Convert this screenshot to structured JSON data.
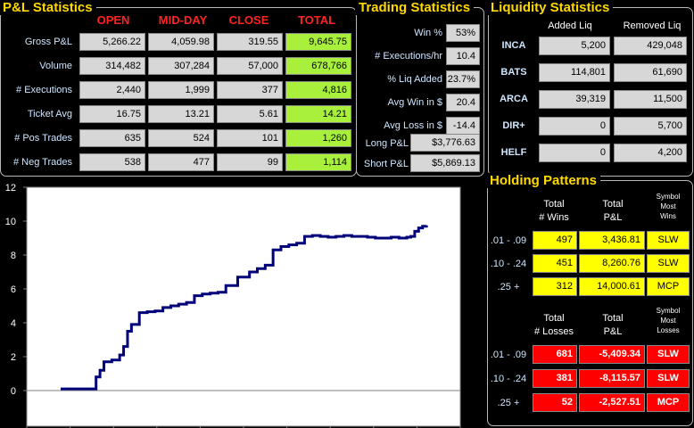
{
  "pl": {
    "title": "P&L Statistics",
    "columns": [
      "OPEN",
      "MID-DAY",
      "CLOSE",
      "TOTAL"
    ],
    "rows": [
      {
        "label": "Gross P&L",
        "values": [
          "5,266.22",
          "4,059.98",
          "319.55",
          "9,645.75"
        ]
      },
      {
        "label": "Volume",
        "values": [
          "314,482",
          "307,284",
          "57,000",
          "678,766"
        ]
      },
      {
        "label": "# Executions",
        "values": [
          "2,440",
          "1,999",
          "377",
          "4,816"
        ]
      },
      {
        "label": "Ticket Avg",
        "values": [
          "16.75",
          "13.21",
          "5.61",
          "14.21"
        ]
      },
      {
        "label": "# Pos Trades",
        "values": [
          "635",
          "524",
          "101",
          "1,260"
        ]
      },
      {
        "label": "# Neg Trades",
        "values": [
          "538",
          "477",
          "99",
          "1,114"
        ]
      }
    ]
  },
  "trading": {
    "title": "Trading Statistics",
    "rows": [
      {
        "label": "Win %",
        "value": "53%"
      },
      {
        "label": "# Executions/hr",
        "value": "10.4"
      },
      {
        "label": "% Liq Added",
        "value": "23.7%"
      },
      {
        "label": "Avg Win in $",
        "value": "20.4"
      },
      {
        "label": "Avg Loss in $",
        "value": "-14.4"
      }
    ],
    "long_label": "Long P&L",
    "long_value": "$3,776.63",
    "short_label": "Short P&L",
    "short_value": "$5,869.13"
  },
  "liquidity": {
    "title": "Liquidity Statistics",
    "col_added": "Added Liq",
    "col_removed": "Removed Liq",
    "rows": [
      {
        "label": "INCA",
        "added": "5,200",
        "removed": "429,048"
      },
      {
        "label": "BATS",
        "added": "114,801",
        "removed": "61,690"
      },
      {
        "label": "ARCA",
        "added": "39,319",
        "removed": "11,500"
      },
      {
        "label": "DIR+",
        "added": "0",
        "removed": "5,700"
      },
      {
        "label": "HELF",
        "added": "0",
        "removed": "4,200"
      }
    ]
  },
  "holding": {
    "title": "Holding Patterns",
    "wins_hdr1": "Total",
    "wins_hdr2": "# Wins",
    "pl_hdr1": "Total",
    "pl_hdr2": "P&L",
    "sym_hdr": [
      "Symbol",
      "Most",
      "Wins"
    ],
    "wins": [
      {
        "range": ".01 - .09",
        "count": "497",
        "pl": "3,436.81",
        "sym": "SLW"
      },
      {
        "range": ".10 - .24",
        "count": "451",
        "pl": "8,260.76",
        "sym": "SLW"
      },
      {
        "range": ".25 +",
        "count": "312",
        "pl": "14,000.61",
        "sym": "MCP"
      }
    ],
    "loss_hdr1": "Total",
    "loss_hdr2": "# Losses",
    "lpl_hdr1": "Total",
    "lpl_hdr2": "P&L",
    "lsym_hdr": [
      "Symbol",
      "Most",
      "Losses"
    ],
    "losses": [
      {
        "range": ".01 - .09",
        "count": "681",
        "pl": "-5,409.34",
        "sym": "SLW"
      },
      {
        "range": ".10 - .24",
        "count": "381",
        "pl": "-8,115.57",
        "sym": "SLW"
      },
      {
        "range": ".25 +",
        "count": "52",
        "pl": "-2,527.51",
        "sym": "MCP"
      }
    ]
  },
  "chart_data": {
    "type": "line",
    "title": "",
    "xlabel": "",
    "ylabel": "",
    "ylim": [
      0,
      12
    ],
    "yticks": [
      "0",
      "2",
      "4",
      "6",
      "8",
      "10",
      "12"
    ],
    "grid": false,
    "series_color": "#00007a",
    "x": [
      0,
      0.06,
      0.07,
      0.08,
      0.09,
      0.1,
      0.11,
      0.13,
      0.14,
      0.15,
      0.16,
      0.17,
      0.18,
      0.2,
      0.22,
      0.24,
      0.26,
      0.28,
      0.3,
      0.32,
      0.34,
      0.36,
      0.38,
      0.4,
      0.42,
      0.45,
      0.48,
      0.5,
      0.52,
      0.54,
      0.56,
      0.58,
      0.6,
      0.62,
      0.64,
      0.66,
      0.68,
      0.7,
      0.72,
      0.74,
      0.76,
      0.78,
      0.8,
      0.82,
      0.84,
      0.86,
      0.88,
      0.89,
      0.9,
      0.91,
      0.92,
      0.93
    ],
    "y": [
      0.1,
      0.1,
      0.1,
      0.1,
      0.8,
      1.2,
      1.7,
      1.8,
      1.8,
      2.1,
      2.6,
      3.5,
      3.9,
      4.6,
      4.65,
      4.7,
      4.9,
      5.0,
      5.1,
      5.2,
      5.6,
      5.7,
      5.75,
      5.8,
      6.2,
      6.7,
      7.0,
      7.2,
      7.4,
      8.3,
      8.5,
      8.6,
      8.7,
      9.1,
      9.15,
      9.1,
      9.05,
      9.1,
      9.15,
      9.1,
      9.1,
      9.05,
      9.0,
      9.0,
      9.05,
      9.0,
      9.05,
      9.1,
      9.4,
      9.6,
      9.7,
      9.75
    ]
  }
}
